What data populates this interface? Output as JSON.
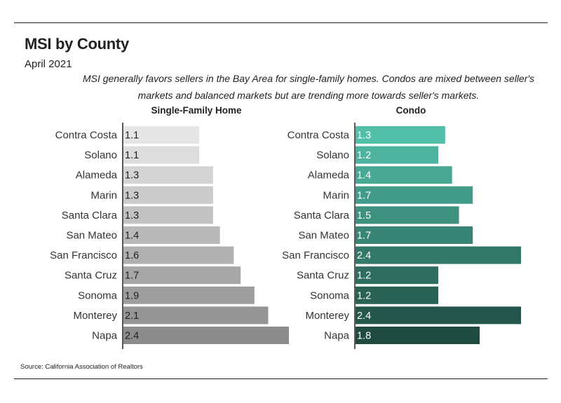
{
  "title": "MSI by County",
  "subtitle": "April 2021",
  "description": "MSI generally favors sellers in the Bay Area for single-family homes. Condos are mixed between seller's markets and balanced markets but are trending more towards seller's markets.",
  "source": "Source:  California Association of Realtors",
  "colors": {
    "sfh_light": "#e6e6e6",
    "sfh_dark": "#8c8c8c",
    "condo_light": "#52bfa9",
    "condo_dark": "#1f4a40",
    "axis": "#222222"
  },
  "chart_data": [
    {
      "type": "bar",
      "orientation": "horizontal",
      "title": "Single-Family Home",
      "categories": [
        "Contra Costa",
        "Solano",
        "Alameda",
        "Marin",
        "Santa Clara",
        "San Mateo",
        "San Francisco",
        "Santa Cruz",
        "Sonoma",
        "Monterey",
        "Napa"
      ],
      "values": [
        1.1,
        1.1,
        1.3,
        1.3,
        1.3,
        1.4,
        1.6,
        1.7,
        1.9,
        2.1,
        2.4
      ],
      "data_labels": [
        "1.1",
        "1.1",
        "1.3",
        "1.3",
        "1.3",
        "1.4",
        "1.6",
        "1.7",
        "1.9",
        "2.1",
        "2.4"
      ],
      "xlim": [
        0,
        2.4
      ],
      "grid": false,
      "legend": "none"
    },
    {
      "type": "bar",
      "orientation": "horizontal",
      "title": "Condo",
      "categories": [
        "Contra Costa",
        "Solano",
        "Alameda",
        "Marin",
        "Santa Clara",
        "San Mateo",
        "San Francisco",
        "Santa Cruz",
        "Sonoma",
        "Monterey",
        "Napa"
      ],
      "values": [
        1.3,
        1.2,
        1.4,
        1.7,
        1.5,
        1.7,
        2.4,
        1.2,
        1.2,
        2.4,
        1.8
      ],
      "data_labels": [
        "1.3",
        "1.2",
        "1.4",
        "1.7",
        "1.5",
        "1.7",
        "2.4",
        "1.2",
        "1.2",
        "2.4",
        "1.8"
      ],
      "xlim": [
        0,
        2.4
      ],
      "grid": false,
      "legend": "none"
    }
  ]
}
